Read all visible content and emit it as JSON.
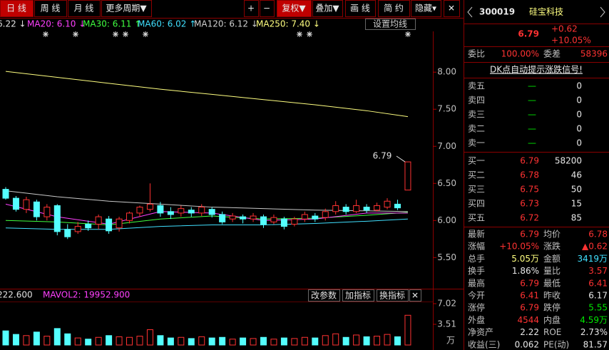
{
  "toolbar": {
    "left": [
      "日 线",
      "周 线",
      "月 线",
      "更多周期▼"
    ],
    "right": [
      "+",
      "−",
      "复权▼",
      "叠加▼",
      "画 线",
      "简 约",
      "隐藏▾",
      "✕"
    ]
  },
  "ma_header": [
    {
      "text": "6.22 ↓",
      "color": "#e0e0e0"
    },
    {
      "text": "MA20: 6.10 ↓",
      "color": "#ff40ff"
    },
    {
      "text": "MA30: 6.11 ↑",
      "color": "#40ff40"
    },
    {
      "text": "MA60: 6.02 ↑",
      "color": "#40e0ff"
    },
    {
      "text": "MA120: 6.12 ↓",
      "color": "#d0d0d0"
    },
    {
      "text": "MA250: 7.40 ↓",
      "color": "#ffff80"
    }
  ],
  "ma_settings": "设置均线",
  "price_chart": {
    "ylim": [
      5.08,
      8.55
    ],
    "yticks": [
      {
        "value": 8,
        "label": "8.00"
      },
      {
        "value": 7.5,
        "label": "7.50"
      },
      {
        "value": 7,
        "label": "7.00"
      },
      {
        "value": 6.5,
        "label": "6.50"
      },
      {
        "value": 6,
        "label": "6.00"
      },
      {
        "value": 5.5,
        "label": "5.50"
      }
    ],
    "up_color": "#ff3232",
    "down_color": "#54ffff",
    "candles": [
      {
        "o": 6.42,
        "c": 6.3,
        "h": 6.45,
        "l": 6.28
      },
      {
        "o": 6.3,
        "c": 6.15,
        "h": 6.33,
        "l": 6.12
      },
      {
        "o": 6.15,
        "c": 6.28,
        "h": 6.32,
        "l": 6.1
      },
      {
        "o": 6.25,
        "c": 6.05,
        "h": 6.28,
        "l": 6.0
      },
      {
        "o": 6.05,
        "c": 6.18,
        "h": 6.22,
        "l": 6.0
      },
      {
        "o": 6.2,
        "c": 5.85,
        "h": 6.22,
        "l": 5.8
      },
      {
        "o": 5.88,
        "c": 5.78,
        "h": 5.95,
        "l": 5.75
      },
      {
        "o": 5.85,
        "c": 5.92,
        "h": 5.98,
        "l": 5.82
      },
      {
        "o": 5.95,
        "c": 5.9,
        "h": 6.0,
        "l": 5.86
      },
      {
        "o": 5.95,
        "c": 6.05,
        "h": 6.08,
        "l": 5.88
      },
      {
        "o": 6.02,
        "c": 5.86,
        "h": 6.06,
        "l": 5.82
      },
      {
        "o": 5.9,
        "c": 6.02,
        "h": 6.05,
        "l": 5.85
      },
      {
        "o": 6.0,
        "c": 6.1,
        "h": 6.12,
        "l": 5.96
      },
      {
        "o": 6.1,
        "c": 6.18,
        "h": 6.2,
        "l": 6.05
      },
      {
        "o": 6.15,
        "c": 6.22,
        "h": 6.5,
        "l": 6.12
      },
      {
        "o": 6.2,
        "c": 6.1,
        "h": 6.25,
        "l": 6.05
      },
      {
        "o": 6.12,
        "c": 6.08,
        "h": 6.18,
        "l": 6.02
      },
      {
        "o": 6.1,
        "c": 6.16,
        "h": 6.2,
        "l": 6.05
      },
      {
        "o": 6.14,
        "c": 6.1,
        "h": 6.18,
        "l": 6.05
      },
      {
        "o": 6.1,
        "c": 6.18,
        "h": 6.22,
        "l": 6.06
      },
      {
        "o": 6.15,
        "c": 6.08,
        "h": 6.18,
        "l": 6.04
      },
      {
        "o": 6.08,
        "c": 5.98,
        "h": 6.12,
        "l": 5.95
      },
      {
        "o": 6.02,
        "c": 6.06,
        "h": 6.1,
        "l": 5.98
      },
      {
        "o": 6.05,
        "c": 6.02,
        "h": 6.08,
        "l": 5.96
      },
      {
        "o": 6.02,
        "c": 6.06,
        "h": 6.1,
        "l": 5.98
      },
      {
        "o": 6.05,
        "c": 5.95,
        "h": 6.08,
        "l": 5.9
      },
      {
        "o": 5.98,
        "c": 6.04,
        "h": 6.08,
        "l": 5.95
      },
      {
        "o": 6.02,
        "c": 5.92,
        "h": 6.05,
        "l": 5.88
      },
      {
        "o": 5.95,
        "c": 6.02,
        "h": 6.05,
        "l": 5.92
      },
      {
        "o": 6.02,
        "c": 6.08,
        "h": 6.12,
        "l": 5.98
      },
      {
        "o": 6.06,
        "c": 6.02,
        "h": 6.1,
        "l": 5.98
      },
      {
        "o": 6.04,
        "c": 6.12,
        "h": 6.16,
        "l": 6.0
      },
      {
        "o": 6.12,
        "c": 6.2,
        "h": 6.26,
        "l": 6.08
      },
      {
        "o": 6.18,
        "c": 6.12,
        "h": 6.22,
        "l": 6.08
      },
      {
        "o": 6.12,
        "c": 6.2,
        "h": 6.28,
        "l": 6.1
      },
      {
        "o": 6.18,
        "c": 6.14,
        "h": 6.22,
        "l": 6.1
      },
      {
        "o": 6.14,
        "c": 6.2,
        "h": 6.24,
        "l": 6.12
      },
      {
        "o": 6.18,
        "c": 6.26,
        "h": 6.3,
        "l": 6.15
      },
      {
        "o": 6.22,
        "c": 6.17,
        "h": 6.28,
        "l": 6.14
      },
      {
        "o": 6.41,
        "c": 6.79,
        "h": 6.79,
        "l": 6.41
      }
    ],
    "ma_x": [
      0,
      5,
      10,
      15,
      20,
      25,
      30,
      35,
      39
    ],
    "ma_lines": [
      {
        "color": "#ffff80",
        "values": [
          8.01,
          7.93,
          7.85,
          7.77,
          7.7,
          7.63,
          7.56,
          7.48,
          7.4
        ]
      },
      {
        "color": "#c8c8c8",
        "values": [
          6.4,
          6.32,
          6.26,
          6.22,
          6.18,
          6.16,
          6.14,
          6.13,
          6.12
        ]
      },
      {
        "color": "#40e0ff",
        "values": [
          5.9,
          5.88,
          5.88,
          5.92,
          5.94,
          5.94,
          5.96,
          5.99,
          6.02
        ]
      },
      {
        "color": "#40ff40",
        "values": [
          6.0,
          5.98,
          5.94,
          6.02,
          6.06,
          6.02,
          6.03,
          6.07,
          6.11
        ]
      },
      {
        "color": "#ff40ff",
        "values": [
          6.22,
          6.05,
          5.95,
          6.12,
          6.1,
          6.0,
          6.02,
          6.1,
          6.1
        ]
      }
    ],
    "last_label": "6.79"
  },
  "volume": {
    "header": [
      {
        "text": "222.600",
        "color": "#e0e0e0"
      },
      {
        "text": "MAVOL2: 19952.900",
        "color": "#ff40ff"
      }
    ],
    "buttons": [
      "改参数",
      "加指标",
      "换指标",
      "✕"
    ],
    "ylim": [
      0,
      7.02
    ],
    "yticks": [
      {
        "value": 7.02,
        "label": "7.02"
      },
      {
        "value": 3.51,
        "label": "3.51"
      }
    ],
    "unit_label": "万",
    "values": [
      2.4,
      1.8,
      1.6,
      2.2,
      1.5,
      2.8,
      1.9,
      1.2,
      1.0,
      1.3,
      1.6,
      1.4,
      1.3,
      1.5,
      2.6,
      1.6,
      1.2,
      1.3,
      1.1,
      1.4,
      1.2,
      1.3,
      1.0,
      1.2,
      1.1,
      1.3,
      1.0,
      1.2,
      1.1,
      1.3,
      1.2,
      1.6,
      1.9,
      1.3,
      1.7,
      1.4,
      1.5,
      1.8,
      1.4,
      5.05
    ]
  },
  "quote": {
    "code": "300019",
    "name": "硅宝科技",
    "price": "6.79",
    "change": "+0.62",
    "change_pct": "+10.05%",
    "ratio": [
      "委比",
      "100.00%",
      "委差",
      "58396"
    ],
    "dk": "DK点自动提示涨跌信号!",
    "sell": [
      [
        "卖五",
        "—",
        "0"
      ],
      [
        "卖四",
        "—",
        "0"
      ],
      [
        "卖三",
        "—",
        "0"
      ],
      [
        "卖二",
        "—",
        "0"
      ],
      [
        "卖一",
        "—",
        "0"
      ]
    ],
    "buy": [
      [
        "买一",
        "6.79",
        "58200"
      ],
      [
        "买二",
        "6.78",
        "46"
      ],
      [
        "买三",
        "6.75",
        "50"
      ],
      [
        "买四",
        "6.73",
        "15"
      ],
      [
        "买五",
        "6.72",
        "85"
      ]
    ],
    "stats": [
      [
        "最新",
        "6.79",
        "均价",
        "6.78"
      ],
      [
        "涨幅",
        "+10.05%",
        "涨跌",
        "▲0.62"
      ],
      [
        "总手",
        "5.05万",
        "金额",
        "3419万"
      ],
      [
        "换手",
        "1.86%",
        "量比",
        "3.57"
      ],
      [
        "最高",
        "6.79",
        "最低",
        "6.41"
      ],
      [
        "今开",
        "6.41",
        "昨收",
        "6.17"
      ],
      [
        "涨停",
        "6.79",
        "跌停",
        "5.55"
      ],
      [
        "外盘",
        "4544",
        "内盘",
        "4.59万"
      ],
      [
        "净资产",
        "2.22",
        "ROE",
        "2.73%"
      ],
      [
        "收益(三)",
        "0.062",
        "PE(动)",
        "81.57"
      ]
    ]
  }
}
